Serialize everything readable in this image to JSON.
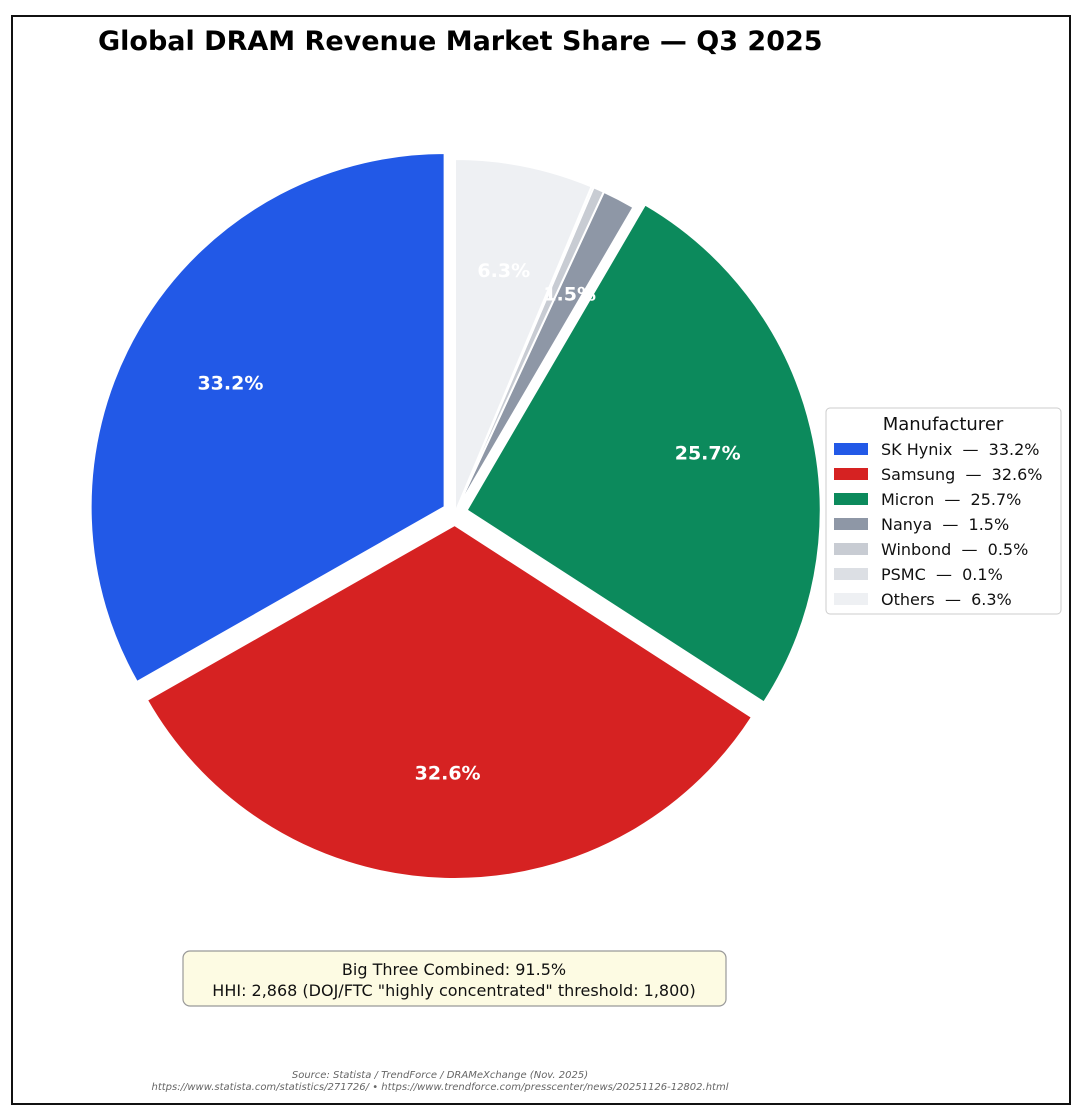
{
  "chart_data": {
    "type": "pie",
    "title": "Global DRAM Revenue Market Share — Q3 2025",
    "legend": {
      "title": "Manufacturer",
      "placement": "right"
    },
    "slices": [
      {
        "name": "SK Hynix",
        "value": 33.2,
        "color": "#2259e7",
        "label": "33.2%",
        "legend_label": "SK Hynix  —  33.2%",
        "exploded": true
      },
      {
        "name": "Samsung",
        "value": 32.6,
        "color": "#d62222",
        "label": "32.6%",
        "legend_label": "Samsung  —  32.6%",
        "exploded": true
      },
      {
        "name": "Micron",
        "value": 25.7,
        "color": "#0c8a5c",
        "label": "25.7%",
        "legend_label": "Micron  —  25.7%",
        "exploded": true
      },
      {
        "name": "Nanya",
        "value": 1.5,
        "color": "#8e97a6",
        "label": "1.5%",
        "legend_label": "Nanya  —  1.5%",
        "exploded": false
      },
      {
        "name": "Winbond",
        "value": 0.5,
        "color": "#c8ccd3",
        "label": "",
        "legend_label": "Winbond  —  0.5%",
        "exploded": false
      },
      {
        "name": "PSMC",
        "value": 0.1,
        "color": "#dcdfe4",
        "label": "",
        "legend_label": "PSMC  —  0.1%",
        "exploded": false
      },
      {
        "name": "Others",
        "value": 6.3,
        "color": "#eef0f3",
        "label": "6.3%",
        "legend_label": "Others  —  6.3%",
        "exploded": false
      }
    ],
    "start_angle_deg": 90,
    "direction": "counterclockwise",
    "annotation": {
      "line1": "Big Three Combined: 91.5%",
      "line2": "HHI: 2,868  (DOJ/FTC \"highly concentrated\" threshold: 1,800)"
    },
    "source": {
      "line1": "Source: Statista / TrendForce / DRAMeXchange (Nov. 2025)",
      "line2": "https://www.statista.com/statistics/271726/  •  https://www.trendforce.com/presscenter/news/20251126-12802.html"
    }
  }
}
